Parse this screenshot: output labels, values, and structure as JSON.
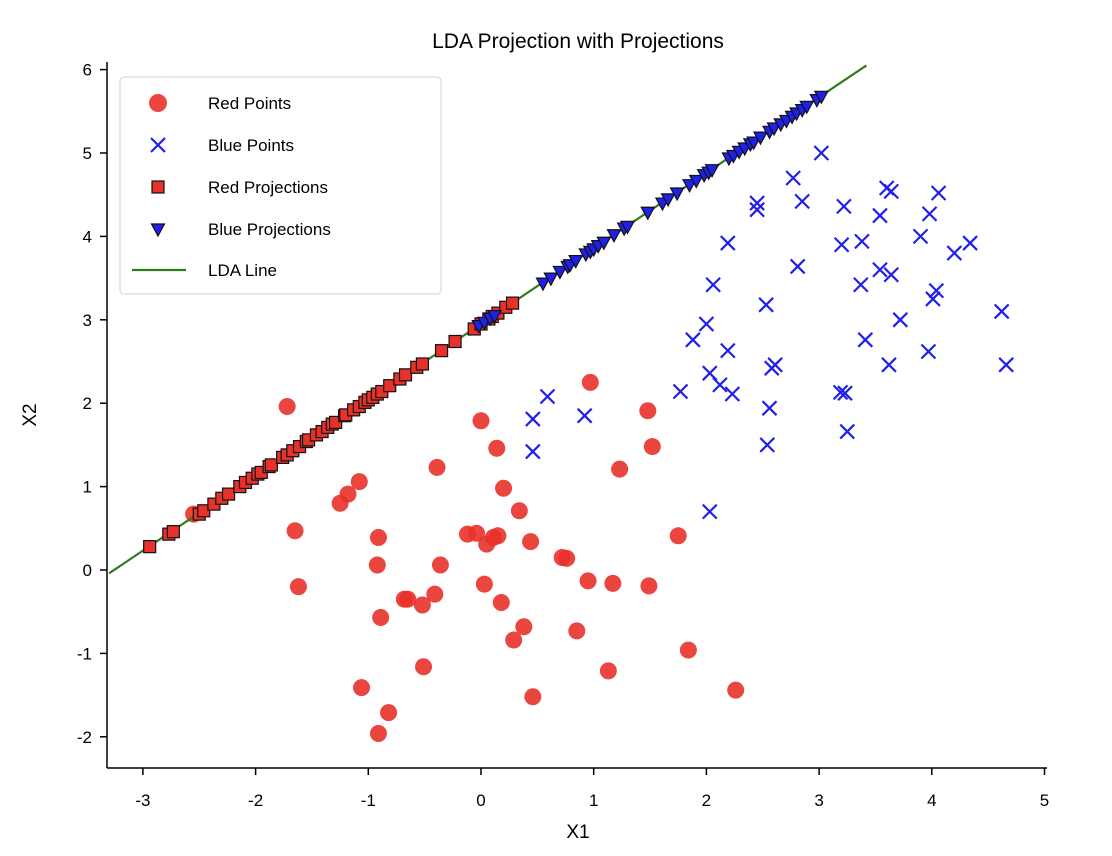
{
  "chart_data": {
    "type": "scatter",
    "title": "LDA Projection with Projections",
    "xlabel": "X1",
    "ylabel": "X2",
    "xlim": [
      -3.3,
      5.05
    ],
    "ylim": [
      -2.4,
      6.1
    ],
    "xticks": [
      -3,
      -2,
      -1,
      0,
      1,
      2,
      3,
      4,
      5
    ],
    "yticks": [
      -2,
      -1,
      0,
      1,
      2,
      3,
      4,
      5,
      6
    ],
    "grid": false,
    "legend_position": "upper-left",
    "colors": {
      "red": "#e8312a",
      "blue": "#2020e8",
      "line": "#2e7d1f",
      "edge": "#111111"
    },
    "lda_line": {
      "name": "LDA Line",
      "x": [
        -3.3,
        3.42
      ],
      "y": [
        -0.04,
        6.05
      ]
    },
    "series": [
      {
        "name": "Red Points",
        "marker": "circle",
        "x": [
          -1.72,
          -2.55,
          -1.65,
          -1.62,
          -1.08,
          -1.18,
          -1.25,
          -0.91,
          -0.92,
          -0.89,
          -1.06,
          -0.82,
          -0.91,
          -0.68,
          -0.65,
          -0.52,
          -0.51,
          -0.39,
          -0.41,
          -0.36,
          -0.12,
          -0.04,
          0.05,
          0.11,
          0.15,
          0.14,
          0.2,
          0.34,
          0.38,
          0.44,
          0.46,
          0.0,
          0.03,
          0.18,
          0.29,
          0.72,
          0.76,
          0.85,
          0.95,
          0.97,
          1.13,
          1.17,
          1.23,
          1.48,
          1.49,
          1.52,
          1.75,
          1.84,
          2.26
        ],
        "y": [
          1.96,
          0.67,
          0.47,
          -0.2,
          1.06,
          0.91,
          0.8,
          0.39,
          0.06,
          -0.57,
          -1.41,
          -1.71,
          -1.96,
          -0.35,
          -0.35,
          -0.42,
          -1.16,
          1.23,
          -0.29,
          0.06,
          0.43,
          0.44,
          0.31,
          0.39,
          0.41,
          1.46,
          0.98,
          0.71,
          -0.68,
          0.34,
          -1.52,
          1.79,
          -0.17,
          -0.39,
          -0.84,
          0.15,
          0.14,
          -0.73,
          -0.13,
          2.25,
          -1.21,
          -0.16,
          1.21,
          1.91,
          -0.19,
          1.48,
          0.41,
          -0.96,
          -1.44
        ]
      },
      {
        "name": "Blue Points",
        "marker": "x",
        "x": [
          3.02,
          2.77,
          2.45,
          2.45,
          2.85,
          3.22,
          3.6,
          3.64,
          4.06,
          3.98,
          3.54,
          3.9,
          4.34,
          4.2,
          3.2,
          3.38,
          2.19,
          2.81,
          3.54,
          3.64,
          2.06,
          2.53,
          3.37,
          4.04,
          4.01,
          4.62,
          2.0,
          1.88,
          3.72,
          3.41,
          2.19,
          3.97,
          3.62,
          4.66,
          2.03,
          2.12,
          2.58,
          2.61,
          1.77,
          2.23,
          0.59,
          0.46,
          0.92,
          3.19,
          3.23,
          2.56,
          3.25,
          2.54,
          0.46,
          2.03
        ],
        "y": [
          5.0,
          4.7,
          4.4,
          4.32,
          4.42,
          4.36,
          4.58,
          4.54,
          4.52,
          4.27,
          4.25,
          4.0,
          3.92,
          3.8,
          3.9,
          3.94,
          3.92,
          3.64,
          3.6,
          3.54,
          3.42,
          3.18,
          3.42,
          3.35,
          3.25,
          3.1,
          2.95,
          2.76,
          3.0,
          2.76,
          2.63,
          2.62,
          2.46,
          2.46,
          2.36,
          2.22,
          2.42,
          2.46,
          2.14,
          2.11,
          2.08,
          1.81,
          1.85,
          2.13,
          2.12,
          1.94,
          1.66,
          1.5,
          1.42,
          0.7
        ]
      },
      {
        "name": "Red Projections",
        "marker": "square",
        "x": [
          -2.94,
          -2.77,
          -2.73,
          -2.5,
          -2.46,
          -2.37,
          -2.3,
          -2.24,
          -2.14,
          -2.09,
          -2.03,
          -1.98,
          -1.95,
          -1.88,
          -1.86,
          -1.76,
          -1.72,
          -1.67,
          -1.61,
          -1.55,
          -1.53,
          -1.46,
          -1.41,
          -1.36,
          -1.32,
          -1.29,
          -1.21,
          -1.2,
          -1.13,
          -1.08,
          -1.03,
          -1.0,
          -0.96,
          -0.92,
          -0.88,
          -0.81,
          -0.72,
          -0.67,
          -0.57,
          -0.52,
          -0.35,
          -0.23,
          -0.06,
          0.0,
          0.07,
          0.1,
          0.15,
          0.22,
          0.28
        ],
        "y": [
          0.28,
          0.43,
          0.46,
          0.67,
          0.71,
          0.79,
          0.86,
          0.91,
          1.0,
          1.05,
          1.1,
          1.15,
          1.17,
          1.24,
          1.26,
          1.35,
          1.38,
          1.43,
          1.48,
          1.54,
          1.56,
          1.62,
          1.66,
          1.71,
          1.75,
          1.77,
          1.85,
          1.86,
          1.92,
          1.96,
          2.01,
          2.04,
          2.07,
          2.11,
          2.14,
          2.21,
          2.29,
          2.34,
          2.43,
          2.47,
          2.63,
          2.74,
          2.89,
          2.95,
          3.01,
          3.04,
          3.08,
          3.15,
          3.2
        ]
      },
      {
        "name": "Blue Projections",
        "marker": "triangle",
        "x": [
          -0.02,
          0.03,
          0.08,
          0.12,
          0.55,
          0.62,
          0.7,
          0.77,
          0.79,
          0.84,
          0.93,
          0.97,
          1.0,
          1.04,
          1.09,
          1.18,
          1.27,
          1.3,
          1.48,
          1.61,
          1.66,
          1.74,
          1.85,
          1.91,
          1.98,
          2.02,
          2.05,
          2.2,
          2.24,
          2.29,
          2.34,
          2.39,
          2.42,
          2.48,
          2.56,
          2.6,
          2.66,
          2.71,
          2.76,
          2.8,
          2.85,
          2.89,
          2.98,
          3.02
        ],
        "y": [
          2.93,
          2.97,
          3.02,
          3.05,
          3.44,
          3.5,
          3.58,
          3.64,
          3.66,
          3.71,
          3.79,
          3.82,
          3.85,
          3.89,
          3.93,
          4.02,
          4.1,
          4.12,
          4.29,
          4.4,
          4.45,
          4.52,
          4.62,
          4.67,
          4.74,
          4.77,
          4.8,
          4.94,
          4.97,
          5.02,
          5.06,
          5.11,
          5.13,
          5.19,
          5.26,
          5.3,
          5.35,
          5.39,
          5.44,
          5.48,
          5.52,
          5.56,
          5.64,
          5.68
        ]
      }
    ],
    "legend": [
      "Red Points",
      "Blue Points",
      "Red Projections",
      "Blue Projections",
      "LDA Line"
    ]
  }
}
